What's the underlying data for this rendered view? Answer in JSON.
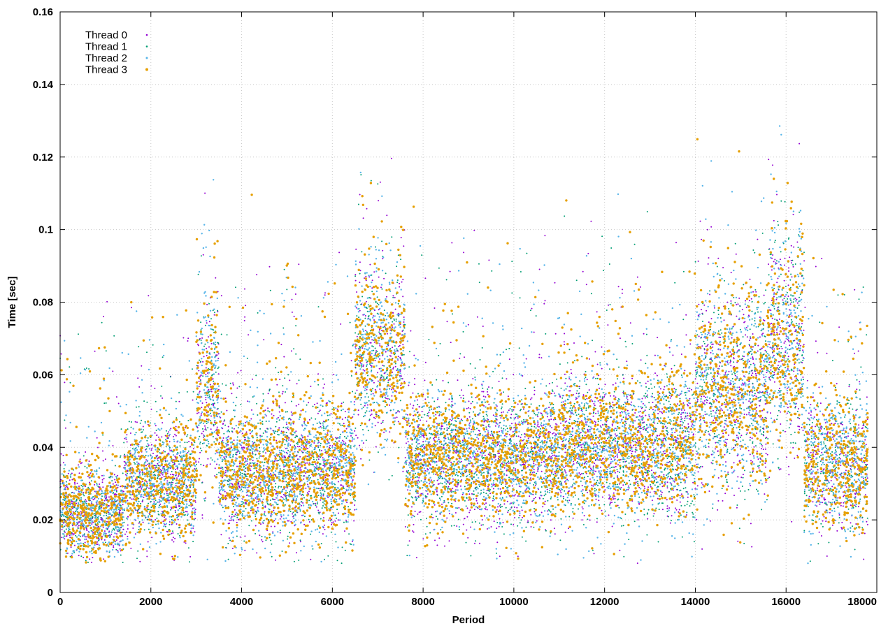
{
  "chart_data": {
    "type": "scatter",
    "title": "",
    "xlabel": "Period",
    "ylabel": "Time [sec]",
    "xlim": [
      0,
      18000
    ],
    "ylim": [
      0,
      0.16
    ],
    "x_ticks": [
      0,
      2000,
      4000,
      6000,
      8000,
      10000,
      12000,
      14000,
      16000,
      18000
    ],
    "x_tick_labels": [
      "0",
      "2000",
      "4000",
      "6000",
      "8000",
      "10000",
      "12000",
      "14000",
      "16000",
      "18000"
    ],
    "y_ticks": [
      0,
      0.02,
      0.04,
      0.06,
      0.08,
      0.1,
      0.12,
      0.14,
      0.16
    ],
    "y_tick_labels": [
      "0",
      "0.02",
      "0.04",
      "0.06",
      "0.08",
      "0.1",
      "0.12",
      "0.14",
      "0.16"
    ],
    "grid": true,
    "legend_position": "top-left",
    "series": [
      {
        "name": "Thread 0",
        "color": "#9400d3",
        "marker_size": 1,
        "points_per_series": 4500
      },
      {
        "name": "Thread 1",
        "color": "#009e73",
        "marker_size": 1,
        "points_per_series": 4500
      },
      {
        "name": "Thread 2",
        "color": "#56b4e9",
        "marker_size": 1.2,
        "points_per_series": 4500
      },
      {
        "name": "Thread 3",
        "color": "#e69f00",
        "marker_size": 1.7,
        "points_per_series": 4500
      }
    ],
    "segments": [
      {
        "x_range": [
          0,
          1400
        ],
        "typical_y": 0.022,
        "spread": 0.006
      },
      {
        "x_range": [
          1400,
          3000
        ],
        "typical_y": 0.03,
        "spread": 0.008
      },
      {
        "x_range": [
          3000,
          3500
        ],
        "typical_y": 0.055,
        "spread": 0.012
      },
      {
        "x_range": [
          3500,
          5000
        ],
        "typical_y": 0.033,
        "spread": 0.009
      },
      {
        "x_range": [
          5000,
          6500
        ],
        "typical_y": 0.034,
        "spread": 0.009
      },
      {
        "x_range": [
          6500,
          7600
        ],
        "typical_y": 0.065,
        "spread": 0.012
      },
      {
        "x_range": [
          7600,
          11000
        ],
        "typical_y": 0.037,
        "spread": 0.009
      },
      {
        "x_range": [
          11000,
          14000
        ],
        "typical_y": 0.04,
        "spread": 0.01
      },
      {
        "x_range": [
          14000,
          15600
        ],
        "typical_y": 0.055,
        "spread": 0.014
      },
      {
        "x_range": [
          15600,
          16400
        ],
        "typical_y": 0.068,
        "spread": 0.015
      },
      {
        "x_range": [
          16400,
          17800
        ],
        "typical_y": 0.035,
        "spread": 0.009
      }
    ]
  }
}
